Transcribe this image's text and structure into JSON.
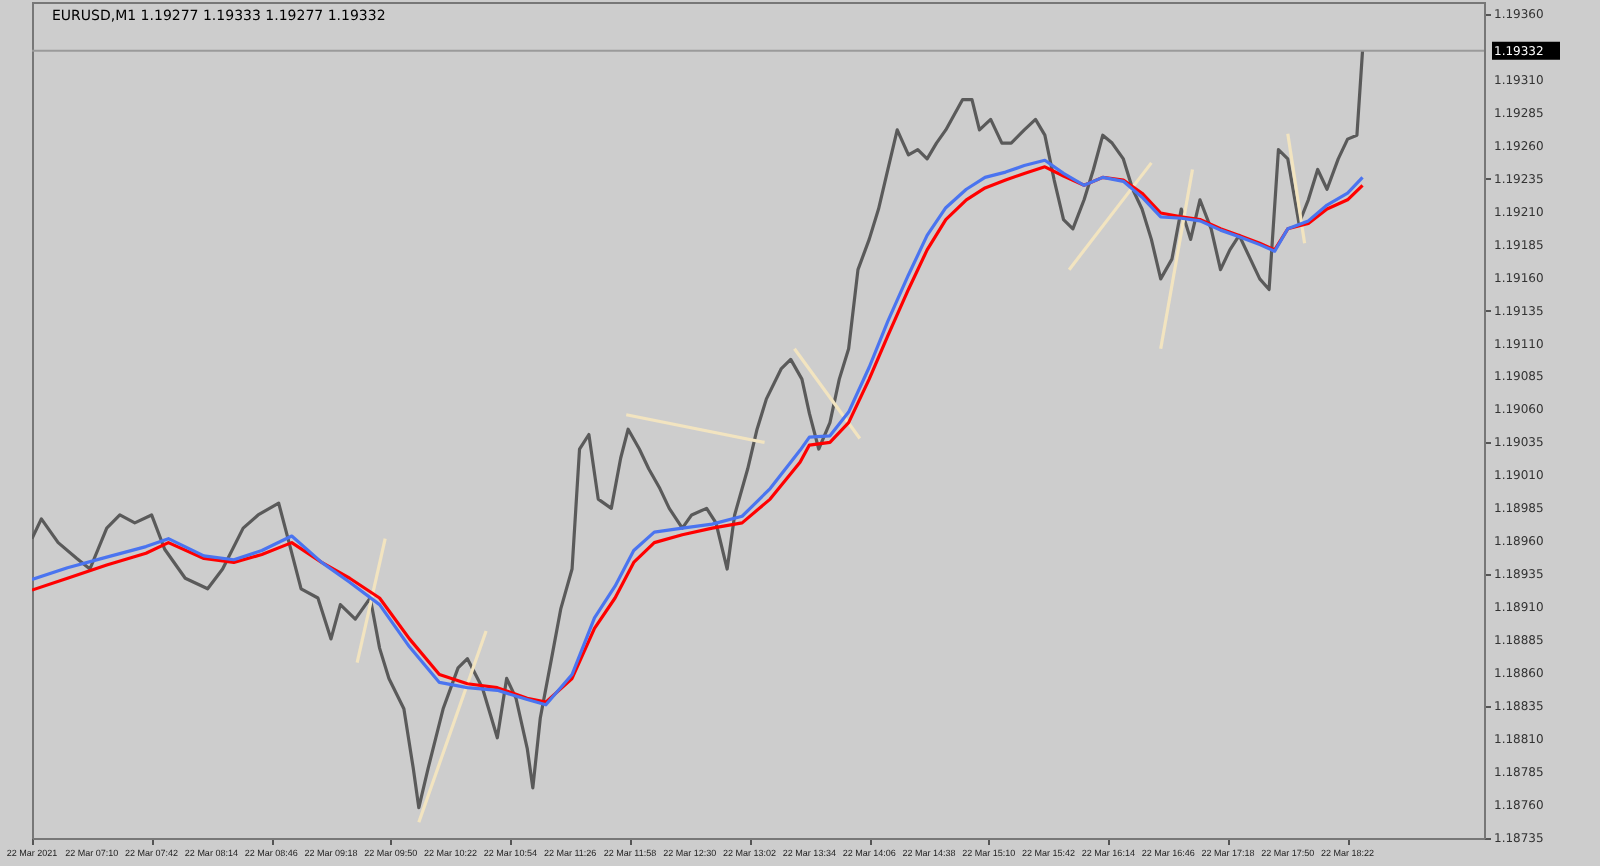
{
  "chart_data": {
    "type": "line",
    "title": "EURUSD,M1  1.19277 1.19333 1.19277 1.19332",
    "xlim": [
      "2021-03-22T06:38",
      "2021-03-22T19:35"
    ],
    "ylim": [
      1.18735,
      1.19369
    ],
    "xticks": [
      {
        "value": "2021-03-22T06:38",
        "label": "22 Mar 2021"
      },
      {
        "value": "2021-03-22T07:10",
        "label": "22 Mar 07:10"
      },
      {
        "value": "2021-03-22T07:42",
        "label": "22 Mar 07:42"
      },
      {
        "value": "2021-03-22T08:14",
        "label": "22 Mar 08:14"
      },
      {
        "value": "2021-03-22T08:46",
        "label": "22 Mar 08:46"
      },
      {
        "value": "2021-03-22T09:18",
        "label": "22 Mar 09:18"
      },
      {
        "value": "2021-03-22T09:50",
        "label": "22 Mar 09:50"
      },
      {
        "value": "2021-03-22T10:22",
        "label": "22 Mar 10:22"
      },
      {
        "value": "2021-03-22T10:54",
        "label": "22 Mar 10:54"
      },
      {
        "value": "2021-03-22T11:26",
        "label": "22 Mar 11:26"
      },
      {
        "value": "2021-03-22T11:58",
        "label": "22 Mar 11:58"
      },
      {
        "value": "2021-03-22T12:30",
        "label": "22 Mar 12:30"
      },
      {
        "value": "2021-03-22T13:02",
        "label": "22 Mar 13:02"
      },
      {
        "value": "2021-03-22T13:34",
        "label": "22 Mar 13:34"
      },
      {
        "value": "2021-03-22T14:06",
        "label": "22 Mar 14:06"
      },
      {
        "value": "2021-03-22T14:38",
        "label": "22 Mar 14:38"
      },
      {
        "value": "2021-03-22T15:10",
        "label": "22 Mar 15:10"
      },
      {
        "value": "2021-03-22T15:42",
        "label": "22 Mar 15:42"
      },
      {
        "value": "2021-03-22T16:14",
        "label": "22 Mar 16:14"
      },
      {
        "value": "2021-03-22T16:46",
        "label": "22 Mar 16:46"
      },
      {
        "value": "2021-03-22T17:18",
        "label": "22 Mar 17:18"
      },
      {
        "value": "2021-03-22T17:50",
        "label": "22 Mar 17:50"
      },
      {
        "value": "2021-03-22T18:22",
        "label": "22 Mar 18:22"
      }
    ],
    "yticks": [
      {
        "value": 1.1936,
        "label": "1.19360"
      },
      {
        "value": 1.1931,
        "label": "1.19310"
      },
      {
        "value": 1.19285,
        "label": "1.19285"
      },
      {
        "value": 1.1926,
        "label": "1.19260"
      },
      {
        "value": 1.19235,
        "label": "1.19235"
      },
      {
        "value": 1.1921,
        "label": "1.19210"
      },
      {
        "value": 1.19185,
        "label": "1.19185"
      },
      {
        "value": 1.1916,
        "label": "1.19160"
      },
      {
        "value": 1.19135,
        "label": "1.19135"
      },
      {
        "value": 1.1911,
        "label": "1.19110"
      },
      {
        "value": 1.19085,
        "label": "1.19085"
      },
      {
        "value": 1.1906,
        "label": "1.19060"
      },
      {
        "value": 1.19035,
        "label": "1.19035"
      },
      {
        "value": 1.1901,
        "label": "1.19010"
      },
      {
        "value": 1.18985,
        "label": "1.18985"
      },
      {
        "value": 1.1896,
        "label": "1.18960"
      },
      {
        "value": 1.18935,
        "label": "1.18935"
      },
      {
        "value": 1.1891,
        "label": "1.18910"
      },
      {
        "value": 1.18885,
        "label": "1.18885"
      },
      {
        "value": 1.1886,
        "label": "1.18860"
      },
      {
        "value": 1.18835,
        "label": "1.18835"
      },
      {
        "value": 1.1881,
        "label": "1.18810"
      },
      {
        "value": 1.18785,
        "label": "1.18785"
      },
      {
        "value": 1.1876,
        "label": "1.18760"
      },
      {
        "value": 1.18735,
        "label": "1.18735"
      }
    ],
    "ref_lines": [
      {
        "axis": "y",
        "value": 1.19332,
        "label": "1.19332",
        "color": "#9a9a9a"
      }
    ],
    "series": [
      {
        "color": "#5a5a5a",
        "x": [
          "2021-03-22T06:38",
          "2021-03-22T06:43",
          "2021-03-22T06:52",
          "2021-03-22T07:02",
          "2021-03-22T07:09",
          "2021-03-22T07:18",
          "2021-03-22T07:25",
          "2021-03-22T07:33",
          "2021-03-22T07:42",
          "2021-03-22T07:49",
          "2021-03-22T08:00",
          "2021-03-22T08:12",
          "2021-03-22T08:20",
          "2021-03-22T08:31",
          "2021-03-22T08:39",
          "2021-03-22T08:50",
          "2021-03-22T08:55",
          "2021-03-22T09:02",
          "2021-03-22T09:11",
          "2021-03-22T09:18",
          "2021-03-22T09:23",
          "2021-03-22T09:31",
          "2021-03-22T09:39",
          "2021-03-22T09:44",
          "2021-03-22T09:49",
          "2021-03-22T09:57",
          "2021-03-22T10:02",
          "2021-03-22T10:05",
          "2021-03-22T10:10",
          "2021-03-22T10:18",
          "2021-03-22T10:26",
          "2021-03-22T10:31",
          "2021-03-22T10:39",
          "2021-03-22T10:47",
          "2021-03-22T10:52",
          "2021-03-22T10:57",
          "2021-03-22T11:03",
          "2021-03-22T11:06",
          "2021-03-22T11:10",
          "2021-03-22T11:16",
          "2021-03-22T11:21",
          "2021-03-22T11:27",
          "2021-03-22T11:31",
          "2021-03-22T11:36",
          "2021-03-22T11:41",
          "2021-03-22T11:48",
          "2021-03-22T11:53",
          "2021-03-22T11:57",
          "2021-03-22T12:03",
          "2021-03-22T12:08",
          "2021-03-22T12:14",
          "2021-03-22T12:19",
          "2021-03-22T12:26",
          "2021-03-22T12:31",
          "2021-03-22T12:39",
          "2021-03-22T12:44",
          "2021-03-22T12:50",
          "2021-03-22T12:54",
          "2021-03-22T13:01",
          "2021-03-22T13:06",
          "2021-03-22T13:11",
          "2021-03-22T13:19",
          "2021-03-22T13:24",
          "2021-03-22T13:30",
          "2021-03-22T13:34",
          "2021-03-22T13:39",
          "2021-03-22T13:45",
          "2021-03-22T13:50",
          "2021-03-22T13:55",
          "2021-03-22T14:00",
          "2021-03-22T14:06",
          "2021-03-22T14:11",
          "2021-03-22T14:16",
          "2021-03-22T14:21",
          "2021-03-22T14:27",
          "2021-03-22T14:32",
          "2021-03-22T14:37",
          "2021-03-22T14:42",
          "2021-03-22T14:47",
          "2021-03-22T14:56",
          "2021-03-22T15:01",
          "2021-03-22T15:05",
          "2021-03-22T15:11",
          "2021-03-22T15:17",
          "2021-03-22T15:22",
          "2021-03-22T15:29",
          "2021-03-22T15:35",
          "2021-03-22T15:40",
          "2021-03-22T15:45",
          "2021-03-22T15:50",
          "2021-03-22T15:55",
          "2021-03-22T16:01",
          "2021-03-22T16:06",
          "2021-03-22T16:11",
          "2021-03-22T16:16",
          "2021-03-22T16:22",
          "2021-03-22T16:27",
          "2021-03-22T16:32",
          "2021-03-22T16:37",
          "2021-03-22T16:42",
          "2021-03-22T16:48",
          "2021-03-22T16:53",
          "2021-03-22T16:58",
          "2021-03-22T17:03",
          "2021-03-22T17:09",
          "2021-03-22T17:14",
          "2021-03-22T17:19",
          "2021-03-22T17:24",
          "2021-03-22T17:30",
          "2021-03-22T17:35",
          "2021-03-22T17:40",
          "2021-03-22T17:45",
          "2021-03-22T17:50",
          "2021-03-22T17:56",
          "2021-03-22T18:01",
          "2021-03-22T18:06",
          "2021-03-22T18:11",
          "2021-03-22T18:17",
          "2021-03-22T18:22",
          "2021-03-22T18:27",
          "2021-03-22T18:30"
        ],
        "values": [
          1.18962,
          1.18977,
          1.18959,
          1.18947,
          1.18939,
          1.1897,
          1.1898,
          1.18974,
          1.1898,
          1.18954,
          1.18932,
          1.18924,
          1.18939,
          1.1897,
          1.1898,
          1.18989,
          1.18962,
          1.18924,
          1.18917,
          1.18886,
          1.18912,
          1.18901,
          1.18917,
          1.18879,
          1.18856,
          1.18833,
          1.18788,
          1.18758,
          1.18788,
          1.18833,
          1.18864,
          1.18871,
          1.18849,
          1.18811,
          1.18856,
          1.18841,
          1.18803,
          1.18773,
          1.18826,
          1.18871,
          1.18909,
          1.18939,
          1.1903,
          1.19041,
          1.18992,
          1.18985,
          1.19023,
          1.19045,
          1.1903,
          1.19015,
          1.19,
          1.18985,
          1.1897,
          1.1898,
          1.18985,
          1.18974,
          1.18939,
          1.1898,
          1.19015,
          1.19045,
          1.19068,
          1.19091,
          1.19098,
          1.19083,
          1.19057,
          1.1903,
          1.1905,
          1.19083,
          1.19106,
          1.19166,
          1.19189,
          1.19212,
          1.19242,
          1.19272,
          1.19253,
          1.19257,
          1.1925,
          1.19262,
          1.19272,
          1.19295,
          1.19295,
          1.19272,
          1.1928,
          1.19262,
          1.19262,
          1.19272,
          1.1928,
          1.19268,
          1.19234,
          1.19204,
          1.19197,
          1.19219,
          1.19242,
          1.19268,
          1.19262,
          1.1925,
          1.19227,
          1.19212,
          1.19189,
          1.19159,
          1.19174,
          1.19212,
          1.19189,
          1.19219,
          1.19197,
          1.19166,
          1.19181,
          1.19192,
          1.19174,
          1.19159,
          1.19151,
          1.19257,
          1.1925,
          1.19201,
          1.19219,
          1.19242,
          1.19227,
          1.1925,
          1.19265,
          1.19268,
          1.19332
        ]
      },
      {
        "color": "#f2e4c0",
        "x": [
          "2021-03-22T09:32",
          "2021-03-22T09:47"
        ],
        "values": [
          1.18868,
          1.18962
        ]
      },
      {
        "color": "#f2e4c0",
        "x": [
          "2021-03-22T10:05",
          "2021-03-22T10:41"
        ],
        "values": [
          1.18747,
          1.18892
        ]
      },
      {
        "color": "#f2e4c0",
        "x": [
          "2021-03-22T11:56",
          "2021-03-22T13:10"
        ],
        "values": [
          1.19056,
          1.19035
        ]
      },
      {
        "color": "#f2e4c0",
        "x": [
          "2021-03-22T13:26",
          "2021-03-22T14:01"
        ],
        "values": [
          1.19106,
          1.19038
        ]
      },
      {
        "color": "#f2e4c0",
        "x": [
          "2021-03-22T15:53",
          "2021-03-22T16:37"
        ],
        "values": [
          1.19166,
          1.19247
        ]
      },
      {
        "color": "#f2e4c0",
        "x": [
          "2021-03-22T16:42",
          "2021-03-22T16:59"
        ],
        "values": [
          1.19106,
          1.19242
        ]
      },
      {
        "color": "#f2e4c0",
        "x": [
          "2021-03-22T17:50",
          "2021-03-22T17:59"
        ],
        "values": [
          1.19269,
          1.19186
        ]
      },
      {
        "color": "#ff0000",
        "x": [
          "2021-03-22T06:38",
          "2021-03-22T06:57",
          "2021-03-22T07:18",
          "2021-03-22T07:39",
          "2021-03-22T07:51",
          "2021-03-22T08:10",
          "2021-03-22T08:26",
          "2021-03-22T08:41",
          "2021-03-22T08:57",
          "2021-03-22T09:13",
          "2021-03-22T09:28",
          "2021-03-22T09:44",
          "2021-03-22T10:00",
          "2021-03-22T10:16",
          "2021-03-22T10:31",
          "2021-03-22T10:47",
          "2021-03-22T11:03",
          "2021-03-22T11:13",
          "2021-03-22T11:27",
          "2021-03-22T11:39",
          "2021-03-22T11:50",
          "2021-03-22T12:00",
          "2021-03-22T12:11",
          "2021-03-22T12:26",
          "2021-03-22T12:42",
          "2021-03-22T12:58",
          "2021-03-22T13:13",
          "2021-03-22T13:29",
          "2021-03-22T13:34",
          "2021-03-22T13:45",
          "2021-03-22T13:55",
          "2021-03-22T14:06",
          "2021-03-22T14:16",
          "2021-03-22T14:27",
          "2021-03-22T14:37",
          "2021-03-22T14:47",
          "2021-03-22T14:58",
          "2021-03-22T15:08",
          "2021-03-22T15:19",
          "2021-03-22T15:29",
          "2021-03-22T15:40",
          "2021-03-22T15:50",
          "2021-03-22T16:01",
          "2021-03-22T16:11",
          "2021-03-22T16:22",
          "2021-03-22T16:32",
          "2021-03-22T16:42",
          "2021-03-22T16:53",
          "2021-03-22T17:03",
          "2021-03-22T17:14",
          "2021-03-22T17:24",
          "2021-03-22T17:35",
          "2021-03-22T17:43",
          "2021-03-22T17:50",
          "2021-03-22T18:01",
          "2021-03-22T18:11",
          "2021-03-22T18:22",
          "2021-03-22T18:30"
        ],
        "values": [
          1.18923,
          1.18932,
          1.18942,
          1.18951,
          1.18959,
          1.18947,
          1.18944,
          1.1895,
          1.18959,
          1.18944,
          1.18932,
          1.18917,
          1.18886,
          1.18859,
          1.18852,
          1.18849,
          1.18841,
          1.18838,
          1.18856,
          1.18894,
          1.18917,
          1.18944,
          1.18959,
          1.18965,
          1.1897,
          1.18974,
          1.18992,
          1.1902,
          1.19033,
          1.19035,
          1.1905,
          1.19083,
          1.19116,
          1.19151,
          1.19181,
          1.19204,
          1.19219,
          1.19228,
          1.19234,
          1.19239,
          1.19244,
          1.19237,
          1.1923,
          1.19236,
          1.19234,
          1.19224,
          1.19209,
          1.19206,
          1.19204,
          1.19197,
          1.19192,
          1.19186,
          1.19181,
          1.19197,
          1.19201,
          1.19212,
          1.19219,
          1.1923
        ]
      },
      {
        "color": "#4a74f0",
        "x": [
          "2021-03-22T06:38",
          "2021-03-22T06:57",
          "2021-03-22T07:18",
          "2021-03-22T07:39",
          "2021-03-22T07:51",
          "2021-03-22T08:10",
          "2021-03-22T08:26",
          "2021-03-22T08:41",
          "2021-03-22T08:57",
          "2021-03-22T09:13",
          "2021-03-22T09:28",
          "2021-03-22T09:44",
          "2021-03-22T10:00",
          "2021-03-22T10:16",
          "2021-03-22T10:31",
          "2021-03-22T10:47",
          "2021-03-22T11:03",
          "2021-03-22T11:13",
          "2021-03-22T11:27",
          "2021-03-22T11:39",
          "2021-03-22T11:50",
          "2021-03-22T12:00",
          "2021-03-22T12:11",
          "2021-03-22T12:26",
          "2021-03-22T12:42",
          "2021-03-22T12:58",
          "2021-03-22T13:13",
          "2021-03-22T13:29",
          "2021-03-22T13:34",
          "2021-03-22T13:45",
          "2021-03-22T13:55",
          "2021-03-22T14:06",
          "2021-03-22T14:16",
          "2021-03-22T14:27",
          "2021-03-22T14:37",
          "2021-03-22T14:47",
          "2021-03-22T14:58",
          "2021-03-22T15:08",
          "2021-03-22T15:19",
          "2021-03-22T15:29",
          "2021-03-22T15:40",
          "2021-03-22T15:50",
          "2021-03-22T16:01",
          "2021-03-22T16:11",
          "2021-03-22T16:22",
          "2021-03-22T16:32",
          "2021-03-22T16:42",
          "2021-03-22T16:53",
          "2021-03-22T17:03",
          "2021-03-22T17:14",
          "2021-03-22T17:24",
          "2021-03-22T17:35",
          "2021-03-22T17:43",
          "2021-03-22T17:50",
          "2021-03-22T18:01",
          "2021-03-22T18:11",
          "2021-03-22T18:22",
          "2021-03-22T18:30"
        ],
        "values": [
          1.18931,
          1.1894,
          1.18948,
          1.18956,
          1.18962,
          1.18949,
          1.18946,
          1.18953,
          1.18964,
          1.18944,
          1.18929,
          1.18912,
          1.1888,
          1.18853,
          1.18849,
          1.18847,
          1.1884,
          1.18836,
          1.18859,
          1.18902,
          1.18926,
          1.18953,
          1.18967,
          1.1897,
          1.18973,
          1.18979,
          1.19,
          1.19029,
          1.19039,
          1.1904,
          1.19058,
          1.19092,
          1.19127,
          1.19162,
          1.19192,
          1.19213,
          1.19227,
          1.19236,
          1.1924,
          1.19245,
          1.19249,
          1.19239,
          1.1923,
          1.19236,
          1.19233,
          1.19221,
          1.19206,
          1.19205,
          1.19203,
          1.19196,
          1.19191,
          1.19185,
          1.1918,
          1.19197,
          1.19203,
          1.19215,
          1.19224,
          1.19236
        ]
      }
    ]
  }
}
